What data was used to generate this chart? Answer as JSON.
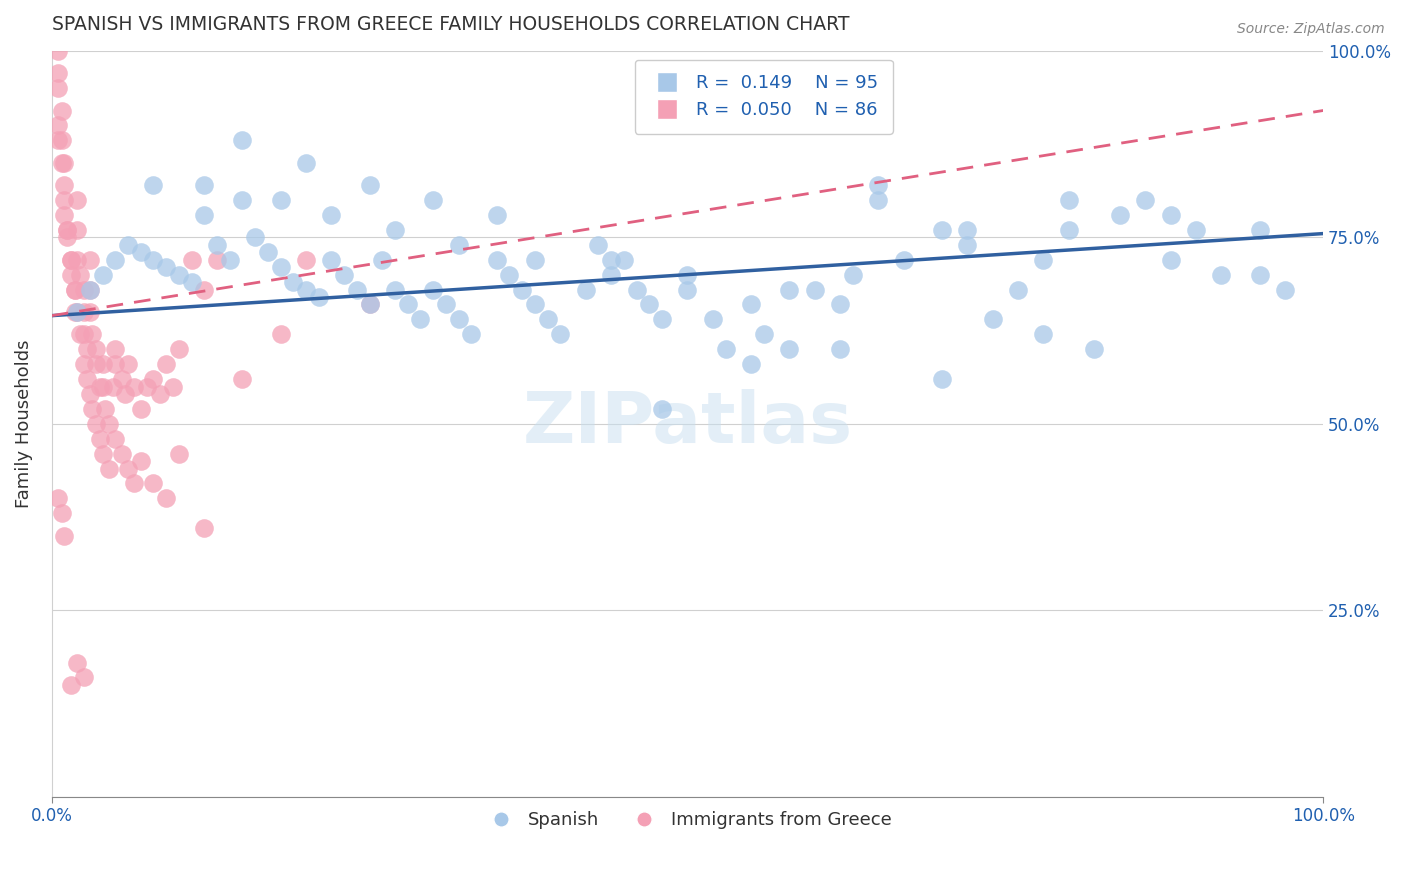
{
  "title": "SPANISH VS IMMIGRANTS FROM GREECE FAMILY HOUSEHOLDS CORRELATION CHART",
  "source": "Source: ZipAtlas.com",
  "ylabel": "Family Households",
  "xlim": [
    0.0,
    1.0
  ],
  "ylim": [
    0.0,
    1.0
  ],
  "yticks": [
    0.0,
    0.25,
    0.5,
    0.75,
    1.0
  ],
  "ytick_labels": [
    "",
    "25.0%",
    "50.0%",
    "75.0%",
    "100.0%"
  ],
  "xtick_labels": [
    "0.0%",
    "100.0%"
  ],
  "legend_R1": "0.149",
  "legend_N1": "95",
  "legend_R2": "0.050",
  "legend_N2": "86",
  "blue_color": "#a8c8e8",
  "pink_color": "#f4a0b5",
  "blue_line_color": "#3060a0",
  "pink_line_color": "#e06080",
  "label_color": "#2060b0",
  "spanish_x": [
    0.02,
    0.03,
    0.04,
    0.05,
    0.06,
    0.07,
    0.08,
    0.09,
    0.1,
    0.11,
    0.12,
    0.13,
    0.14,
    0.15,
    0.16,
    0.17,
    0.18,
    0.19,
    0.2,
    0.21,
    0.22,
    0.23,
    0.24,
    0.25,
    0.26,
    0.27,
    0.28,
    0.29,
    0.3,
    0.31,
    0.32,
    0.33,
    0.35,
    0.36,
    0.37,
    0.38,
    0.39,
    0.4,
    0.42,
    0.43,
    0.44,
    0.45,
    0.46,
    0.47,
    0.48,
    0.5,
    0.52,
    0.53,
    0.55,
    0.56,
    0.58,
    0.6,
    0.62,
    0.63,
    0.65,
    0.67,
    0.7,
    0.72,
    0.74,
    0.76,
    0.78,
    0.8,
    0.82,
    0.84,
    0.86,
    0.88,
    0.9,
    0.92,
    0.95,
    0.97,
    0.08,
    0.12,
    0.18,
    0.22,
    0.27,
    0.32,
    0.38,
    0.44,
    0.5,
    0.58,
    0.65,
    0.72,
    0.8,
    0.88,
    0.95,
    0.48,
    0.55,
    0.62,
    0.7,
    0.78,
    0.15,
    0.2,
    0.25,
    0.3,
    0.35
  ],
  "spanish_y": [
    0.65,
    0.68,
    0.7,
    0.72,
    0.74,
    0.73,
    0.72,
    0.71,
    0.7,
    0.69,
    0.78,
    0.74,
    0.72,
    0.8,
    0.75,
    0.73,
    0.71,
    0.69,
    0.68,
    0.67,
    0.72,
    0.7,
    0.68,
    0.66,
    0.72,
    0.68,
    0.66,
    0.64,
    0.68,
    0.66,
    0.64,
    0.62,
    0.72,
    0.7,
    0.68,
    0.66,
    0.64,
    0.62,
    0.68,
    0.74,
    0.7,
    0.72,
    0.68,
    0.66,
    0.64,
    0.68,
    0.64,
    0.6,
    0.66,
    0.62,
    0.6,
    0.68,
    0.66,
    0.7,
    0.8,
    0.72,
    0.76,
    0.74,
    0.64,
    0.68,
    0.72,
    0.76,
    0.6,
    0.78,
    0.8,
    0.72,
    0.76,
    0.7,
    0.76,
    0.68,
    0.82,
    0.82,
    0.8,
    0.78,
    0.76,
    0.74,
    0.72,
    0.72,
    0.7,
    0.68,
    0.82,
    0.76,
    0.8,
    0.78,
    0.7,
    0.52,
    0.58,
    0.6,
    0.56,
    0.62,
    0.88,
    0.85,
    0.82,
    0.8,
    0.78
  ],
  "greece_x": [
    0.005,
    0.005,
    0.005,
    0.008,
    0.008,
    0.01,
    0.01,
    0.01,
    0.012,
    0.012,
    0.015,
    0.015,
    0.018,
    0.018,
    0.02,
    0.02,
    0.02,
    0.022,
    0.025,
    0.025,
    0.025,
    0.028,
    0.03,
    0.03,
    0.03,
    0.032,
    0.035,
    0.035,
    0.038,
    0.04,
    0.04,
    0.042,
    0.045,
    0.048,
    0.05,
    0.05,
    0.055,
    0.058,
    0.06,
    0.065,
    0.07,
    0.075,
    0.08,
    0.085,
    0.09,
    0.095,
    0.1,
    0.11,
    0.12,
    0.13,
    0.15,
    0.18,
    0.2,
    0.25,
    0.005,
    0.005,
    0.008,
    0.01,
    0.012,
    0.015,
    0.018,
    0.02,
    0.022,
    0.025,
    0.028,
    0.03,
    0.032,
    0.035,
    0.038,
    0.04,
    0.045,
    0.05,
    0.055,
    0.06,
    0.065,
    0.07,
    0.08,
    0.09,
    0.1,
    0.12,
    0.005,
    0.008,
    0.01,
    0.015,
    0.02,
    0.025
  ],
  "greece_y": [
    1.0,
    0.97,
    0.95,
    0.92,
    0.88,
    0.85,
    0.82,
    0.78,
    0.76,
    0.75,
    0.72,
    0.7,
    0.68,
    0.65,
    0.8,
    0.76,
    0.72,
    0.7,
    0.68,
    0.65,
    0.62,
    0.6,
    0.72,
    0.68,
    0.65,
    0.62,
    0.6,
    0.58,
    0.55,
    0.58,
    0.55,
    0.52,
    0.5,
    0.55,
    0.6,
    0.58,
    0.56,
    0.54,
    0.58,
    0.55,
    0.52,
    0.55,
    0.56,
    0.54,
    0.58,
    0.55,
    0.6,
    0.72,
    0.68,
    0.72,
    0.56,
    0.62,
    0.72,
    0.66,
    0.9,
    0.88,
    0.85,
    0.8,
    0.76,
    0.72,
    0.68,
    0.65,
    0.62,
    0.58,
    0.56,
    0.54,
    0.52,
    0.5,
    0.48,
    0.46,
    0.44,
    0.48,
    0.46,
    0.44,
    0.42,
    0.45,
    0.42,
    0.4,
    0.46,
    0.36,
    0.4,
    0.38,
    0.35,
    0.15,
    0.18,
    0.16
  ]
}
